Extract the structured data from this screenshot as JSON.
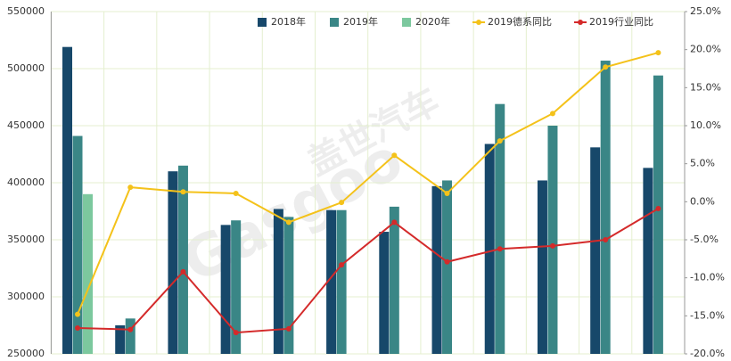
{
  "chart_data": {
    "type": "bar",
    "watermark": [
      "盖世汽车",
      "Gasgoo"
    ],
    "categories": [
      null,
      null,
      null,
      null,
      null,
      null,
      null,
      null,
      null,
      null,
      null,
      null
    ],
    "series": [
      {
        "name": "2018年",
        "color": "#17486a",
        "values": [
          519000,
          275000,
          410000,
          363000,
          377000,
          376000,
          357000,
          397000,
          434000,
          402000,
          431000,
          413000
        ]
      },
      {
        "name": "2019年",
        "color": "#3a8686",
        "values": [
          441000,
          281000,
          415000,
          367000,
          370000,
          376000,
          379000,
          402000,
          469000,
          450000,
          507000,
          494000
        ]
      },
      {
        "name": "2020年",
        "color": "#7cc89e",
        "values": [
          390000,
          null,
          null,
          null,
          null,
          null,
          null,
          null,
          null,
          null,
          null,
          null
        ]
      },
      {
        "name": "2019德系同比",
        "color": "#f4c21a",
        "type": "line",
        "axis": "y2",
        "values": [
          -14.8,
          1.9,
          1.3,
          1.1,
          -2.7,
          -0.1,
          6.1,
          1.1,
          8.0,
          11.6,
          17.7,
          19.6
        ]
      },
      {
        "name": "2019行业同比",
        "color": "#d42a2a",
        "type": "line",
        "axis": "y2",
        "values": [
          -16.6,
          -16.8,
          -9.2,
          -17.2,
          -16.7,
          -8.3,
          -2.7,
          -7.9,
          -6.2,
          -5.8,
          -5.0,
          -0.9
        ]
      }
    ],
    "ylim": [
      250000,
      550000
    ],
    "yticks": [
      250000,
      300000,
      350000,
      400000,
      450000,
      500000,
      550000
    ],
    "y2lim": [
      -20,
      25
    ],
    "y2ticks": [
      {
        "value": -20,
        "label": "-20.0%"
      },
      {
        "value": -15,
        "label": "-15.0%"
      },
      {
        "value": -10,
        "label": "-10.0%"
      },
      {
        "value": -5,
        "label": "-5.0%"
      },
      {
        "value": 0,
        "label": "0.0%"
      },
      {
        "value": 5,
        "label": "5.0%"
      },
      {
        "value": 10,
        "label": "10.0%"
      },
      {
        "value": 15,
        "label": "15.0%"
      },
      {
        "value": 20,
        "label": "20.0%"
      },
      {
        "value": 25,
        "label": "25.0%"
      }
    ],
    "grid": true,
    "legend": "top-right"
  }
}
